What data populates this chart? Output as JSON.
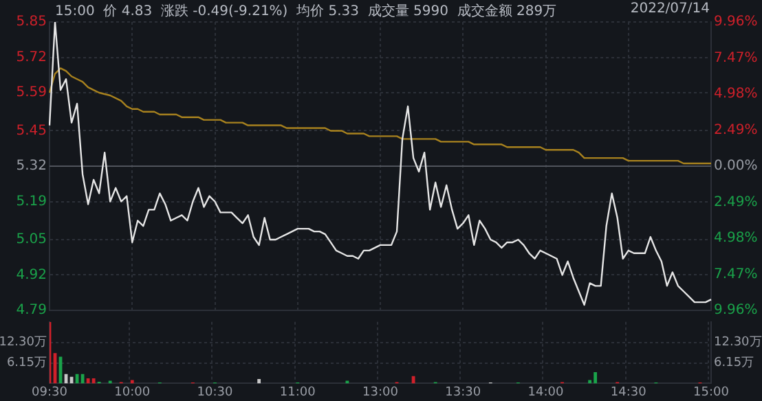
{
  "chart_data": [
    {
      "type": "line",
      "title": "15:00  价 4.83  涨跌 -0.49(-9.21%)  均价 5.33  成交量 5990  成交金额 289万",
      "subtitle": "2022/07/14",
      "categories": [
        null,
        null,
        null,
        null,
        null,
        null,
        null,
        null,
        null,
        null,
        null,
        null,
        null,
        null,
        null,
        null,
        null,
        null,
        null,
        null,
        null,
        null,
        null,
        null,
        null,
        null,
        null,
        null,
        null,
        null,
        null,
        null,
        null,
        null,
        null,
        null,
        null,
        null,
        null,
        null,
        null,
        null,
        null,
        null,
        null,
        null,
        null,
        null,
        null,
        null,
        null,
        null,
        null,
        null,
        null,
        null,
        null,
        null,
        null,
        null,
        null,
        null,
        null,
        null,
        null,
        null,
        null,
        null,
        null,
        null,
        null,
        null,
        null,
        null,
        null,
        null,
        null,
        null,
        null,
        null,
        null,
        null,
        null,
        null,
        null,
        null,
        null,
        null,
        null,
        null,
        null,
        null,
        null,
        null,
        null,
        null,
        null,
        null,
        null,
        null,
        null,
        null,
        null,
        null,
        null,
        null,
        null,
        null,
        null,
        null,
        null,
        null,
        null,
        null,
        null,
        null,
        null,
        null,
        null,
        null,
        null
      ],
      "series": [
        {
          "color": "#e6e6e6",
          "values": [
            5.47,
            5.85,
            5.6,
            5.64,
            5.48,
            5.55,
            5.29,
            5.18,
            5.27,
            5.22,
            5.37,
            5.19,
            5.24,
            5.19,
            5.21,
            5.04,
            5.12,
            5.1,
            5.16,
            5.16,
            5.22,
            5.18,
            5.12,
            5.13,
            5.14,
            5.12,
            5.19,
            5.24,
            5.17,
            5.21,
            5.19,
            5.15,
            5.15,
            5.15,
            5.13,
            5.11,
            5.14,
            5.06,
            5.03,
            5.13,
            5.05,
            5.05,
            5.06,
            5.07,
            5.08,
            5.09,
            5.09,
            5.09,
            5.08,
            5.08,
            5.07,
            5.04,
            5.01,
            5,
            4.99,
            4.99,
            4.98,
            5.01,
            5.01,
            5.02,
            5.03,
            5.03,
            5.03,
            5.08,
            5.42,
            5.54,
            5.35,
            5.3,
            5.37,
            5.16,
            5.26,
            5.17,
            5.25,
            5.16,
            5.09,
            5.11,
            5.14,
            5.03,
            5.12,
            5.09,
            5.05,
            5.04,
            5.02,
            5.04,
            5.04,
            5.05,
            5.03,
            5,
            4.98,
            5.01,
            5,
            4.99,
            4.98,
            4.92,
            4.97,
            4.91,
            4.86,
            4.81,
            4.89,
            4.88,
            4.88,
            5.1,
            5.22,
            5.13,
            4.98,
            5.01,
            5,
            5,
            5,
            5.06,
            5.01,
            4.97,
            4.88,
            4.93,
            4.88,
            4.86,
            4.84,
            4.82,
            4.82,
            4.82,
            4.83
          ]
        },
        {
          "color": "#a8821e",
          "values": [
            5.59,
            5.66,
            5.68,
            5.67,
            5.65,
            5.64,
            5.63,
            5.61,
            5.6,
            5.59,
            5.585,
            5.58,
            5.57,
            5.56,
            5.54,
            5.53,
            5.53,
            5.52,
            5.52,
            5.52,
            5.51,
            5.51,
            5.51,
            5.51,
            5.5,
            5.5,
            5.5,
            5.5,
            5.49,
            5.49,
            5.49,
            5.49,
            5.48,
            5.48,
            5.48,
            5.48,
            5.47,
            5.47,
            5.47,
            5.47,
            5.47,
            5.47,
            5.47,
            5.46,
            5.46,
            5.46,
            5.46,
            5.46,
            5.46,
            5.46,
            5.46,
            5.45,
            5.45,
            5.45,
            5.44,
            5.44,
            5.44,
            5.44,
            5.43,
            5.43,
            5.43,
            5.43,
            5.43,
            5.43,
            5.42,
            5.42,
            5.42,
            5.42,
            5.42,
            5.42,
            5.42,
            5.41,
            5.41,
            5.41,
            5.41,
            5.41,
            5.41,
            5.4,
            5.4,
            5.4,
            5.4,
            5.4,
            5.4,
            5.39,
            5.39,
            5.39,
            5.39,
            5.39,
            5.39,
            5.39,
            5.38,
            5.38,
            5.38,
            5.38,
            5.38,
            5.38,
            5.37,
            5.35,
            5.35,
            5.35,
            5.35,
            5.35,
            5.35,
            5.35,
            5.35,
            5.34,
            5.34,
            5.34,
            5.34,
            5.34,
            5.34,
            5.34,
            5.34,
            5.34,
            5.34,
            5.33,
            5.33,
            5.33,
            5.33,
            5.33,
            5.33
          ]
        }
      ],
      "ylim": [
        4.79,
        5.85
      ],
      "yticks": [
        4.79,
        4.92,
        5.05,
        5.19,
        5.32,
        5.45,
        5.59,
        5.72,
        5.85
      ],
      "y2lim": [
        -9.96,
        9.96
      ],
      "y2ticks": [
        {
          "value": -9.96,
          "label": "9.96%"
        },
        {
          "value": -7.47,
          "label": "7.47%"
        },
        {
          "value": -4.98,
          "label": "4.98%"
        },
        {
          "value": -2.49,
          "label": "2.49%"
        },
        {
          "value": 0,
          "label": "0.00%"
        },
        {
          "value": 2.49,
          "label": "2.49%"
        },
        {
          "value": 4.98,
          "label": "4.98%"
        },
        {
          "value": 7.47,
          "label": "7.47%"
        },
        {
          "value": 9.96,
          "label": "9.96%"
        }
      ],
      "ref_lines": [
        {
          "axis": "y",
          "value": 5.32,
          "color": "#50545c"
        }
      ],
      "grid": true,
      "tick_labels": "y"
    },
    {
      "type": "bar",
      "categories": [
        "09:30",
        null,
        null,
        null,
        null,
        null,
        null,
        null,
        null,
        null,
        null,
        null,
        null,
        null,
        null,
        "10:00",
        null,
        null,
        null,
        null,
        null,
        null,
        null,
        null,
        null,
        null,
        null,
        null,
        null,
        null,
        "10:30",
        null,
        null,
        null,
        null,
        null,
        null,
        null,
        null,
        null,
        null,
        null,
        null,
        null,
        null,
        "11:00",
        null,
        null,
        null,
        null,
        null,
        null,
        null,
        null,
        null,
        null,
        null,
        null,
        null,
        null,
        "13:00",
        null,
        null,
        null,
        null,
        null,
        null,
        null,
        null,
        null,
        null,
        null,
        null,
        null,
        null,
        "13:30",
        null,
        null,
        null,
        null,
        null,
        null,
        null,
        null,
        null,
        null,
        null,
        null,
        null,
        null,
        "14:00",
        null,
        null,
        null,
        null,
        null,
        null,
        null,
        null,
        null,
        null,
        null,
        null,
        null,
        null,
        "14:30",
        null,
        null,
        null,
        null,
        null,
        null,
        null,
        null,
        null,
        null,
        null,
        null,
        null,
        null,
        "15:00"
      ],
      "values": [
        18.4,
        9.1,
        8,
        2.8,
        2,
        2.8,
        2.8,
        1.5,
        1.5,
        0.5,
        null,
        0.8,
        null,
        0.4,
        null,
        1,
        null,
        null,
        null,
        null,
        0.3,
        null,
        null,
        null,
        null,
        null,
        0.3,
        null,
        null,
        null,
        0.3,
        null,
        null,
        null,
        null,
        null,
        null,
        null,
        1.3,
        null,
        null,
        null,
        null,
        null,
        null,
        0.3,
        null,
        null,
        null,
        null,
        null,
        null,
        null,
        null,
        0.8,
        null,
        null,
        null,
        null,
        null,
        null,
        null,
        null,
        0.4,
        null,
        null,
        2.2,
        null,
        null,
        null,
        0.4,
        null,
        null,
        null,
        null,
        null,
        null,
        null,
        null,
        null,
        0.3,
        null,
        null,
        null,
        null,
        0.3,
        null,
        null,
        null,
        null,
        null,
        null,
        null,
        0.4,
        null,
        null,
        null,
        null,
        1,
        3.4,
        null,
        null,
        null,
        0.4,
        null,
        null,
        null,
        null,
        null,
        null,
        0.3,
        null,
        null,
        null,
        null,
        null,
        null,
        null,
        0.3,
        null,
        null
      ],
      "colors": [
        "#d0202a",
        "#d0202a",
        "#1aa34a",
        "#c8c8c8",
        "#c8c8c8",
        "#1aa34a",
        "#1aa34a",
        "#d0202a",
        "#d0202a",
        "#1aa34a",
        null,
        "#1aa34a",
        null,
        "#d0202a",
        null,
        "#d0202a",
        null,
        null,
        null,
        null,
        "#1aa34a",
        null,
        null,
        null,
        null,
        null,
        "#d0202a",
        null,
        null,
        null,
        "#1aa34a",
        null,
        null,
        null,
        null,
        null,
        null,
        null,
        "#c8c8c8",
        null,
        null,
        null,
        null,
        null,
        null,
        "#1aa34a",
        null,
        null,
        null,
        null,
        null,
        null,
        null,
        null,
        "#1aa34a",
        null,
        null,
        null,
        null,
        null,
        null,
        null,
        null,
        "#d0202a",
        null,
        null,
        "#d0202a",
        null,
        null,
        null,
        "#1aa34a",
        null,
        null,
        null,
        null,
        null,
        null,
        null,
        null,
        null,
        "#c8c8c8",
        null,
        null,
        null,
        null,
        "#1aa34a",
        null,
        null,
        null,
        null,
        null,
        null,
        null,
        "#d0202a",
        null,
        null,
        null,
        null,
        "#1aa34a",
        "#1aa34a",
        null,
        null,
        null,
        "#d0202a",
        null,
        null,
        null,
        null,
        null,
        null,
        "#1aa34a",
        null,
        null,
        null,
        null,
        null,
        null,
        null,
        "#d0202a",
        null,
        null
      ],
      "ylim": [
        0,
        18.45
      ],
      "yticks": [
        {
          "value": 6.15,
          "label": "6.15万"
        },
        {
          "value": 12.3,
          "label": "12.30万"
        }
      ],
      "y2lim": [
        0,
        18.45
      ],
      "y2ticks": [
        {
          "value": 6.15,
          "label": "6.15万"
        },
        {
          "value": 12.3,
          "label": "12.30万"
        }
      ],
      "grid": true
    }
  ]
}
